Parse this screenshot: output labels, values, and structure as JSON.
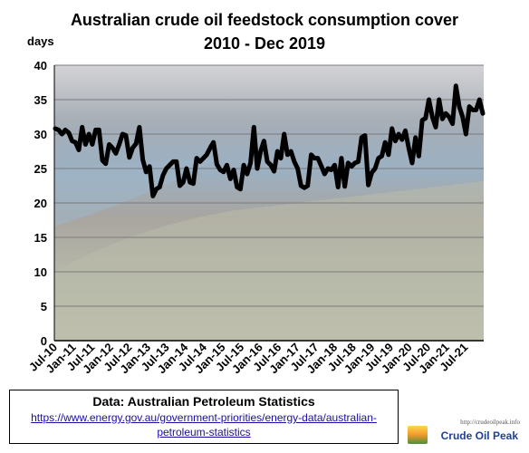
{
  "chart_data": {
    "type": "line",
    "title_line1": "Australian crude oil feedstock consumption cover",
    "title_line2": "2010 - Dec 2019",
    "ylabel": "days",
    "xlabel": "",
    "ylim": [
      0,
      40
    ],
    "yticks": [
      0,
      5,
      10,
      15,
      20,
      25,
      30,
      35,
      40
    ],
    "grid": true,
    "line_color": "#000000",
    "x_tick_labels": [
      "Jul-10",
      "Jan-11",
      "Jul-11",
      "Jan-12",
      "Jul-12",
      "Jan-13",
      "Jul-13",
      "Jan-14",
      "Jul-14",
      "Jan-15",
      "Jul-15",
      "Jan-16",
      "Jul-16",
      "Jan-17",
      "Jul-17",
      "Jan-18",
      "Jul-18",
      "Jan-19",
      "Jul-19",
      "Jan-20",
      "Jul-20",
      "Jan-21",
      "Jul-21"
    ],
    "series": [
      {
        "values": [
          30.8,
          30.6,
          30,
          30.6,
          30.2,
          29,
          28.8,
          27.7,
          31,
          28.5,
          30,
          28.5,
          30.6,
          30.6,
          26.2,
          25.7,
          28.5,
          28,
          27.2,
          28.5,
          30,
          29.8,
          26.6,
          28,
          28.6,
          31,
          26.3,
          24.5,
          25.3,
          21,
          22,
          22.3,
          24,
          25,
          25.5,
          26,
          26,
          22.5,
          23,
          25,
          23,
          22.8,
          26.5,
          26,
          26.5,
          27,
          28,
          28.8,
          25.6,
          24.8,
          24.5,
          25.5,
          23.5,
          24.8,
          22.3,
          22,
          25.5,
          24.2,
          25.8,
          31,
          25,
          27.5,
          29,
          26,
          25.5,
          24.6,
          27.5,
          26.5,
          30,
          27,
          27.5,
          26,
          25,
          22.5,
          22.2,
          22.5,
          27,
          26.5,
          26.5,
          25.4,
          24.2,
          25,
          24.8,
          25.5,
          22.3,
          26.5,
          22.4,
          25.8,
          25.3,
          25.8,
          26,
          29.5,
          29.8,
          22.6,
          24.4,
          25,
          26.5,
          26.8,
          28.8,
          27,
          30.8,
          29,
          30,
          29.2,
          30.5,
          28,
          25.8,
          29.5,
          26.8,
          32,
          32.3,
          35,
          32.5,
          31,
          35,
          32.2,
          33,
          32.5,
          31.5,
          37,
          34,
          32.5,
          30,
          34,
          33.5,
          33.5,
          35,
          33
        ]
      }
    ]
  },
  "source": {
    "title": "Data: Australian Petroleum Statistics",
    "link": "https://www.energy.gov.au/government-priorities/energy-data/australian-petroleum-statistics"
  },
  "logo": {
    "url_text": "http://crudeoilpeak.info",
    "name": "Crude Oil Peak"
  }
}
